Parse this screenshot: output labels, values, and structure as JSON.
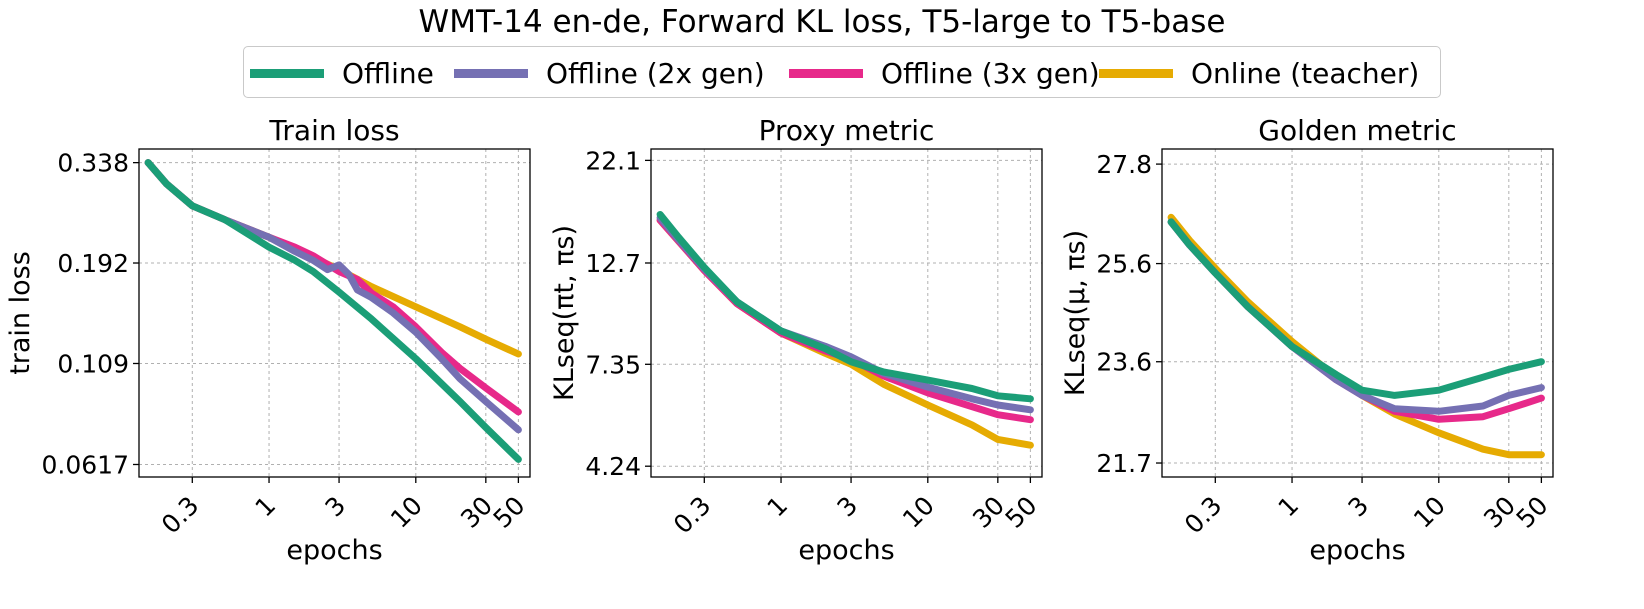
{
  "figure_title": "WMT-14 en-de, Forward KL loss, T5-large to T5-base",
  "colors": {
    "offline": "#1b9e77",
    "offline_2x": "#7570b3",
    "offline_3x": "#e7298a",
    "online": "#e6ab02"
  },
  "legend": [
    {
      "key": "offline",
      "label": "Offline"
    },
    {
      "key": "offline_2x",
      "label": "Offline (2x gen)"
    },
    {
      "key": "offline_3x",
      "label": "Offline (3x gen)"
    },
    {
      "key": "online",
      "label": "Online (teacher)"
    }
  ],
  "chart_data": [
    {
      "type": "line",
      "title": "Train loss",
      "xlabel": "epochs",
      "ylabel": "train loss",
      "xscale": "log",
      "yscale": "log",
      "xlim": [
        0.13,
        60
      ],
      "ylim": [
        0.0575,
        0.365
      ],
      "x_ticks": [
        0.3,
        1,
        3,
        10,
        30,
        50
      ],
      "x_tick_labels": [
        "0.3",
        "1",
        "3",
        "10",
        "30",
        "50"
      ],
      "y_ticks": [
        0.0617,
        0.109,
        0.192,
        0.338
      ],
      "y_tick_labels": [
        "0.0617",
        "0.109",
        "0.192",
        "0.338"
      ],
      "grid": true,
      "series": [
        {
          "key": "online",
          "name": "Online (teacher)",
          "x": [
            0.15,
            0.2,
            0.3,
            0.5,
            1,
            2,
            3,
            5,
            10,
            20,
            30,
            50
          ],
          "y": [
            0.338,
            0.3,
            0.265,
            0.245,
            0.222,
            0.198,
            0.185,
            0.168,
            0.15,
            0.134,
            0.125,
            0.115
          ]
        },
        {
          "key": "offline_3x",
          "name": "Offline (3x gen)",
          "x": [
            0.15,
            0.2,
            0.3,
            0.5,
            1,
            1.5,
            2,
            3,
            4,
            5,
            7,
            10,
            15,
            20,
            30,
            50
          ],
          "y": [
            0.338,
            0.3,
            0.265,
            0.245,
            0.222,
            0.21,
            0.2,
            0.183,
            0.175,
            0.162,
            0.15,
            0.134,
            0.116,
            0.106,
            0.095,
            0.083
          ]
        },
        {
          "key": "offline_2x",
          "name": "Offline (2x gen)",
          "x": [
            0.15,
            0.2,
            0.3,
            0.5,
            1,
            1.5,
            2,
            2.5,
            3,
            3.5,
            4,
            5,
            7,
            10,
            15,
            20,
            30,
            50
          ],
          "y": [
            0.338,
            0.3,
            0.265,
            0.245,
            0.222,
            0.205,
            0.195,
            0.185,
            0.19,
            0.18,
            0.165,
            0.158,
            0.145,
            0.13,
            0.112,
            0.1,
            0.088,
            0.075
          ]
        },
        {
          "key": "offline",
          "name": "Offline",
          "x": [
            0.15,
            0.2,
            0.3,
            0.5,
            1,
            1.5,
            2,
            3,
            5,
            10,
            20,
            30,
            50
          ],
          "y": [
            0.338,
            0.3,
            0.265,
            0.245,
            0.21,
            0.195,
            0.183,
            0.163,
            0.14,
            0.112,
            0.088,
            0.076,
            0.0635
          ]
        }
      ]
    },
    {
      "type": "line",
      "title": "Proxy metric",
      "xlabel": "epochs",
      "ylabel": "KLseq(πt, πs)",
      "xscale": "log",
      "yscale": "log",
      "xlim": [
        0.13,
        60
      ],
      "ylim": [
        4.0,
        23.5
      ],
      "x_ticks": [
        0.3,
        1,
        3,
        10,
        30,
        50
      ],
      "x_tick_labels": [
        "0.3",
        "1",
        "3",
        "10",
        "30",
        "50"
      ],
      "y_ticks": [
        4.24,
        7.35,
        12.7,
        22.1
      ],
      "y_tick_labels": [
        "4.24",
        "7.35",
        "12.7",
        "22.1"
      ],
      "grid": true,
      "series": [
        {
          "key": "online",
          "name": "Online (teacher)",
          "x": [
            0.15,
            0.2,
            0.3,
            0.5,
            1,
            2,
            3,
            5,
            10,
            20,
            30,
            50
          ],
          "y": [
            16.0,
            14.3,
            12.2,
            10.2,
            8.7,
            7.8,
            7.35,
            6.6,
            5.9,
            5.3,
            4.9,
            4.75
          ]
        },
        {
          "key": "offline_3x",
          "name": "Offline (3x gen)",
          "x": [
            0.15,
            0.2,
            0.3,
            0.5,
            1,
            2,
            3,
            5,
            10,
            20,
            30,
            50
          ],
          "y": [
            16.0,
            14.3,
            12.2,
            10.2,
            8.7,
            7.9,
            7.55,
            6.9,
            6.3,
            5.85,
            5.6,
            5.45
          ]
        },
        {
          "key": "offline_2x",
          "name": "Offline (2x gen)",
          "x": [
            0.15,
            0.2,
            0.3,
            0.5,
            1,
            2,
            3,
            5,
            10,
            20,
            30,
            50
          ],
          "y": [
            16.2,
            14.4,
            12.3,
            10.3,
            8.8,
            8.1,
            7.65,
            7.0,
            6.5,
            6.1,
            5.9,
            5.75
          ]
        },
        {
          "key": "offline",
          "name": "Offline",
          "x": [
            0.15,
            0.2,
            0.3,
            0.5,
            1,
            2,
            3,
            5,
            10,
            20,
            30,
            50
          ],
          "y": [
            16.5,
            14.6,
            12.4,
            10.3,
            8.8,
            8.0,
            7.45,
            7.05,
            6.75,
            6.45,
            6.2,
            6.1
          ]
        }
      ]
    },
    {
      "type": "line",
      "title": "Golden metric",
      "xlabel": "epochs",
      "ylabel": "KLseq(μ, πs)",
      "xscale": "log",
      "yscale": "log",
      "xlim": [
        0.13,
        60
      ],
      "ylim": [
        21.45,
        28.15
      ],
      "x_ticks": [
        0.3,
        1,
        3,
        10,
        30,
        50
      ],
      "x_tick_labels": [
        "0.3",
        "1",
        "3",
        "10",
        "30",
        "50"
      ],
      "y_ticks": [
        21.7,
        23.6,
        25.6,
        27.8
      ],
      "y_tick_labels": [
        "21.7",
        "23.6",
        "25.6",
        "27.8"
      ],
      "grid": true,
      "series": [
        {
          "key": "online",
          "name": "Online (teacher)",
          "x": [
            0.15,
            0.2,
            0.3,
            0.5,
            1,
            2,
            3,
            5,
            10,
            20,
            30,
            50
          ],
          "y": [
            26.6,
            26.1,
            25.5,
            24.8,
            24.0,
            23.3,
            22.95,
            22.6,
            22.25,
            21.95,
            21.85,
            21.85
          ]
        },
        {
          "key": "offline_3x",
          "name": "Offline (3x gen)",
          "x": [
            0.15,
            0.2,
            0.3,
            0.5,
            1,
            2,
            3,
            5,
            10,
            20,
            30,
            50
          ],
          "y": [
            26.5,
            26.0,
            25.4,
            24.7,
            23.9,
            23.25,
            22.95,
            22.65,
            22.5,
            22.55,
            22.7,
            22.9
          ]
        },
        {
          "key": "offline_2x",
          "name": "Offline (2x gen)",
          "x": [
            0.15,
            0.2,
            0.3,
            0.5,
            1,
            2,
            3,
            5,
            10,
            20,
            30,
            50
          ],
          "y": [
            26.5,
            26.0,
            25.4,
            24.7,
            23.9,
            23.25,
            22.95,
            22.7,
            22.65,
            22.75,
            22.95,
            23.1
          ]
        },
        {
          "key": "offline",
          "name": "Offline",
          "x": [
            0.15,
            0.2,
            0.3,
            0.5,
            1,
            2,
            3,
            5,
            10,
            20,
            30,
            50
          ],
          "y": [
            26.5,
            26.0,
            25.4,
            24.7,
            23.9,
            23.35,
            23.05,
            22.95,
            23.05,
            23.3,
            23.45,
            23.6
          ]
        }
      ]
    }
  ]
}
